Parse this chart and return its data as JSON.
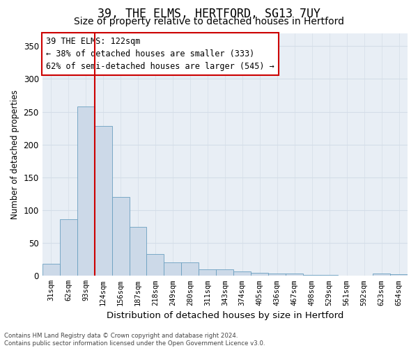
{
  "title_line1": "39, THE ELMS, HERTFORD, SG13 7UY",
  "title_line2": "Size of property relative to detached houses in Hertford",
  "xlabel": "Distribution of detached houses by size in Hertford",
  "ylabel": "Number of detached properties",
  "footer_line1": "Contains HM Land Registry data © Crown copyright and database right 2024.",
  "footer_line2": "Contains public sector information licensed under the Open Government Licence v3.0.",
  "categories": [
    "31sqm",
    "62sqm",
    "93sqm",
    "124sqm",
    "156sqm",
    "187sqm",
    "218sqm",
    "249sqm",
    "280sqm",
    "311sqm",
    "343sqm",
    "374sqm",
    "405sqm",
    "436sqm",
    "467sqm",
    "498sqm",
    "529sqm",
    "561sqm",
    "592sqm",
    "623sqm",
    "654sqm"
  ],
  "values": [
    18,
    86,
    258,
    228,
    120,
    75,
    33,
    20,
    20,
    10,
    10,
    7,
    5,
    4,
    3,
    1,
    1,
    0,
    0,
    3,
    2
  ],
  "bar_color": "#ccd9e8",
  "bar_edge_color": "#6a9fc0",
  "grid_color": "#d4dde8",
  "annotation_box_text": "39 THE ELMS: 122sqm\n← 38% of detached houses are smaller (333)\n62% of semi-detached houses are larger (545) →",
  "annotation_box_color": "#ffffff",
  "annotation_box_edge_color": "#cc0000",
  "vline_color": "#cc0000",
  "ylim": [
    0,
    370
  ],
  "yticks": [
    0,
    50,
    100,
    150,
    200,
    250,
    300,
    350
  ],
  "bg_color": "#ffffff",
  "axes_bg_color": "#e8eef5",
  "title_fontsize": 12,
  "subtitle_fontsize": 10,
  "annot_fontsize": 8.5,
  "tick_label_fontsize": 7.5,
  "ylabel_fontsize": 8.5,
  "xlabel_fontsize": 9.5
}
